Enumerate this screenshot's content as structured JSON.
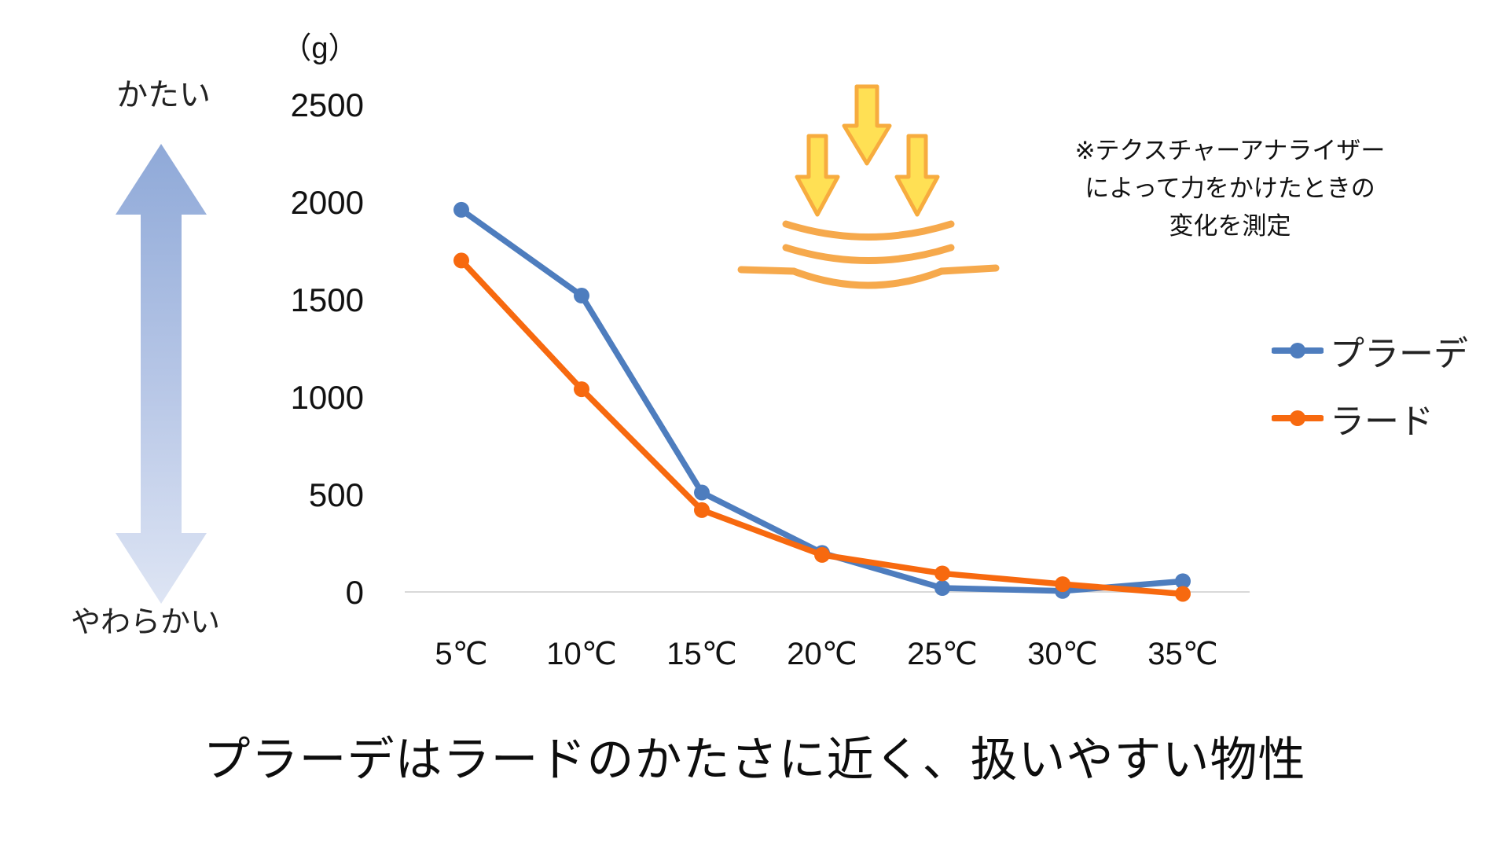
{
  "page": {
    "background": "#FFFFFF"
  },
  "hardness_scale": {
    "top_label": "かたい",
    "bottom_label": "やわらかい",
    "arrow_top_color": "#8FA9D8",
    "arrow_bottom_color": "#DEE5F4"
  },
  "chart_data": {
    "type": "line",
    "title": "",
    "xlabel": "",
    "ylabel": "（g）",
    "categories": [
      "5℃",
      "10℃",
      "15℃",
      "20℃",
      "25℃",
      "30℃",
      "35℃"
    ],
    "series": [
      {
        "name": "プラーデ",
        "color": "#4E7DBE",
        "values": [
          1960,
          1520,
          510,
          200,
          20,
          5,
          55
        ]
      },
      {
        "name": "ラード",
        "color": "#F7690F",
        "values": [
          1700,
          1040,
          420,
          190,
          95,
          40,
          -10
        ]
      }
    ],
    "yticks": [
      0,
      500,
      1000,
      1500,
      2000,
      2500
    ],
    "ylim": [
      0,
      2500
    ],
    "grid": false,
    "legend_position": "right",
    "axis_line_color": "#D9D9D9"
  },
  "annotation": {
    "lines": [
      "※テクスチャーアナライザー",
      "によって力をかけたときの",
      "変化を測定"
    ]
  },
  "pressure_icon": {
    "label": "texture-analyzer-press-icon",
    "arrow_fill": "#FFE054",
    "arrow_stroke": "#F7AC3F",
    "surface_color": "#F6A94C"
  },
  "caption": {
    "text": "プラーデはラードのかたさに近く、扱いやすい物性"
  }
}
